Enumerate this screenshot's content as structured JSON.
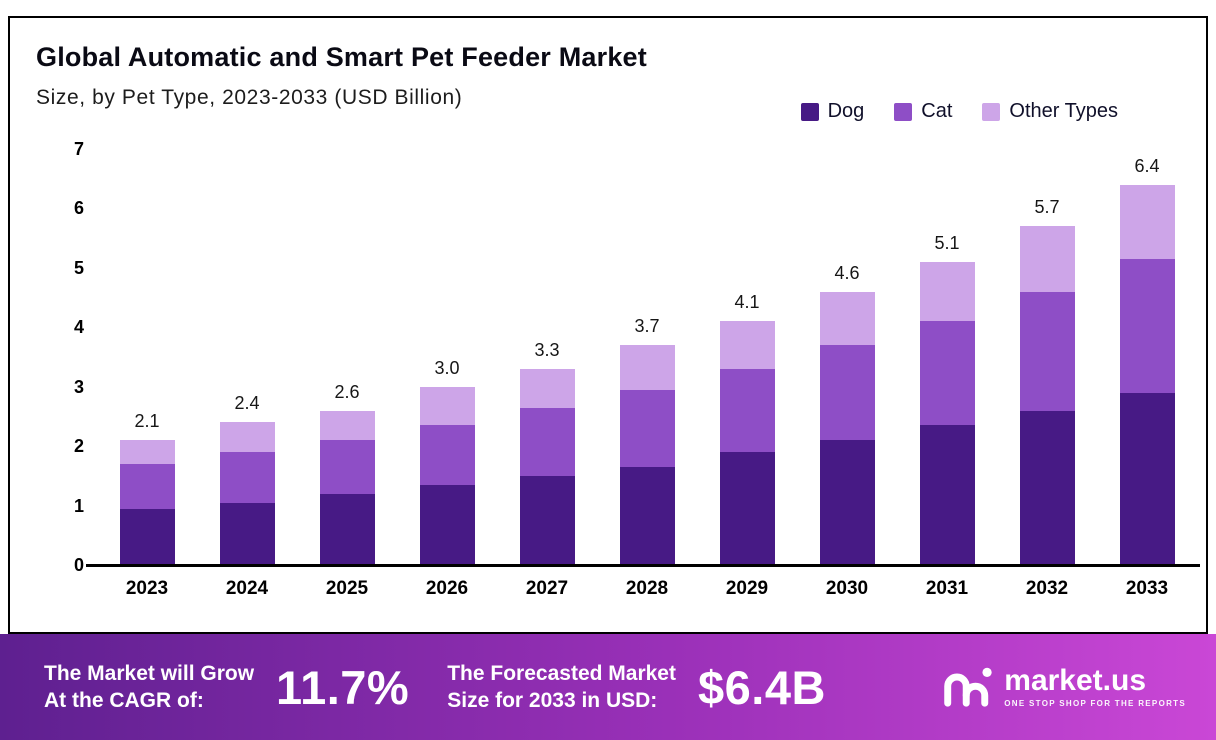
{
  "title": "Global Automatic and Smart Pet Feeder Market",
  "subtitle": "Size, by Pet Type, 2023-2033 (USD Billion)",
  "legend": [
    {
      "label": "Dog",
      "color": "#471a85"
    },
    {
      "label": "Cat",
      "color": "#8e4ec6"
    },
    {
      "label": "Other Types",
      "color": "#cda5e8"
    }
  ],
  "chart_data": {
    "type": "bar",
    "stacked": true,
    "title": "Global Automatic and Smart Pet Feeder Market Size, by Pet Type, 2023-2033 (USD Billion)",
    "xlabel": "",
    "ylabel": "",
    "categories": [
      "2023",
      "2024",
      "2025",
      "2026",
      "2027",
      "2028",
      "2029",
      "2030",
      "2031",
      "2032",
      "2033"
    ],
    "series": [
      {
        "name": "Dog",
        "color": "#471a85",
        "values": [
          0.95,
          1.05,
          1.2,
          1.35,
          1.5,
          1.65,
          1.9,
          2.1,
          2.35,
          2.6,
          2.9
        ]
      },
      {
        "name": "Cat",
        "color": "#8e4ec6",
        "values": [
          0.75,
          0.85,
          0.9,
          1.0,
          1.15,
          1.3,
          1.4,
          1.6,
          1.75,
          2.0,
          2.25
        ]
      },
      {
        "name": "Other Types",
        "color": "#cda5e8",
        "values": [
          0.4,
          0.5,
          0.5,
          0.65,
          0.65,
          0.75,
          0.8,
          0.9,
          1.0,
          1.1,
          1.25
        ]
      }
    ],
    "totals_labels": [
      "2.1",
      "2.4",
      "2.6",
      "3.0",
      "3.3",
      "3.7",
      "4.1",
      "4.6",
      "5.1",
      "5.7",
      "6.4"
    ],
    "ylim": [
      0,
      7
    ],
    "yticks": [
      0,
      1,
      2,
      3,
      4,
      5,
      6,
      7
    ],
    "grid": false,
    "legend_position": "top-right"
  },
  "footer": {
    "cagr_label_line1": "The Market will Grow",
    "cagr_label_line2": "At the CAGR of:",
    "cagr_value": "11.7%",
    "forecast_label_line1": "The Forecasted Market",
    "forecast_label_line2": "Size for 2033 in USD:",
    "forecast_value": "$6.4B",
    "brand": "market.us",
    "brand_tagline": "ONE STOP SHOP FOR THE REPORTS",
    "gradient": [
      "#5e2090",
      "#ca47d6"
    ]
  }
}
